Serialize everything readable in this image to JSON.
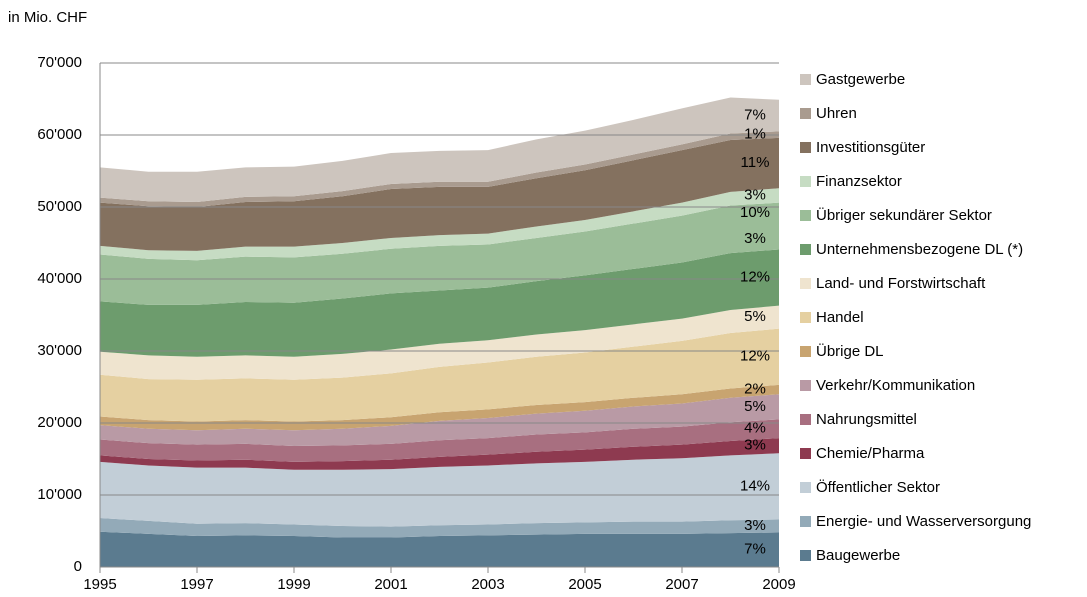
{
  "chart_data": {
    "type": "stacked_area",
    "ylabel": "in Mio. CHF",
    "x": [
      1995,
      1996,
      1997,
      1998,
      1999,
      2000,
      2001,
      2002,
      2003,
      2004,
      2005,
      2006,
      2007,
      2008,
      2009
    ],
    "xlim": [
      1995,
      2009
    ],
    "xticks": [
      1995,
      1997,
      1999,
      2001,
      2003,
      2005,
      2007,
      2009
    ],
    "ylim": [
      0,
      70000
    ],
    "yticks": [
      0,
      {
        "value": 10000,
        "label": "10'000"
      },
      {
        "value": 20000,
        "label": "20'000"
      },
      {
        "value": 30000,
        "label": "30'000"
      },
      {
        "value": 40000,
        "label": "40'000"
      },
      {
        "value": 50000,
        "label": "50'000"
      },
      {
        "value": 60000,
        "label": "60'000"
      },
      {
        "value": 70000,
        "label": "70'000"
      }
    ],
    "grid": true,
    "legend": "right",
    "series": [
      {
        "name": "Baugewerbe",
        "color": "#5b7b8f",
        "labels": [
          "7%"
        ],
        "values": [
          4900,
          4600,
          4300,
          4400,
          4300,
          4100,
          4100,
          4300,
          4400,
          4500,
          4600,
          4600,
          4600,
          4700,
          4800
        ]
      },
      {
        "name": "Energie- und Wasserversorgung",
        "color": "#93aab8",
        "labels": [
          "3%"
        ],
        "values": [
          1900,
          1800,
          1700,
          1700,
          1600,
          1600,
          1500,
          1500,
          1500,
          1600,
          1600,
          1700,
          1700,
          1800,
          1800
        ]
      },
      {
        "name": "Öffentlicher Sektor",
        "color": "#c2ced7",
        "labels": [
          "14%"
        ],
        "values": [
          7800,
          7700,
          7800,
          7700,
          7600,
          7800,
          8000,
          8100,
          8200,
          8300,
          8400,
          8600,
          8800,
          9000,
          9200
        ]
      },
      {
        "name": "Chemie/Pharma",
        "color": "#8e3a50",
        "labels": [
          "3%"
        ],
        "values": [
          900,
          900,
          1000,
          1100,
          1100,
          1200,
          1300,
          1400,
          1500,
          1600,
          1700,
          1800,
          1900,
          2000,
          2100
        ]
      },
      {
        "name": "Nahrungsmittel",
        "color": "#a86f80",
        "labels": [
          "4%"
        ],
        "values": [
          2200,
          2200,
          2200,
          2200,
          2200,
          2200,
          2200,
          2300,
          2300,
          2400,
          2400,
          2500,
          2500,
          2600,
          2600
        ]
      },
      {
        "name": "Verkehr/Kommunikation",
        "color": "#b99aa5",
        "labels": [
          "5%"
        ],
        "values": [
          2000,
          2000,
          2000,
          2100,
          2200,
          2300,
          2500,
          2700,
          2800,
          2900,
          3000,
          3100,
          3200,
          3400,
          3500
        ]
      },
      {
        "name": "Übrige DL",
        "color": "#c8a470",
        "labels": [
          "2%"
        ],
        "values": [
          1200,
          1200,
          1200,
          1200,
          1200,
          1200,
          1200,
          1200,
          1200,
          1200,
          1200,
          1200,
          1300,
          1300,
          1300
        ]
      },
      {
        "name": "Handel",
        "color": "#e5d0a1",
        "labels": [
          "12%"
        ],
        "values": [
          5800,
          5700,
          5800,
          5800,
          5800,
          5900,
          6100,
          6300,
          6500,
          6700,
          6900,
          7100,
          7400,
          7700,
          7800
        ]
      },
      {
        "name": "Land- und Forstwirtschaft",
        "color": "#efe4cf",
        "labels": [
          "5%"
        ],
        "values": [
          3200,
          3300,
          3200,
          3200,
          3200,
          3300,
          3300,
          3200,
          3100,
          3100,
          3100,
          3100,
          3100,
          3200,
          3200
        ]
      },
      {
        "name": "Unternehmensbezogene DL (*)",
        "color": "#6d9c6d",
        "labels": [
          "12%"
        ],
        "values": [
          7000,
          7000,
          7200,
          7400,
          7500,
          7700,
          7800,
          7400,
          7300,
          7400,
          7600,
          7700,
          7800,
          7900,
          7800
        ]
      },
      {
        "name": "Übriger sekundärer Sektor",
        "color": "#9bbd98",
        "labels": [
          "10%",
          "3%"
        ],
        "values": [
          6500,
          6400,
          6200,
          6300,
          6300,
          6200,
          6200,
          6200,
          6000,
          6000,
          6100,
          6300,
          6500,
          6600,
          6500
        ]
      },
      {
        "name": "Finanzsektor",
        "color": "#c6dcc3",
        "labels": [
          "3%"
        ],
        "values": [
          1200,
          1200,
          1300,
          1400,
          1500,
          1500,
          1500,
          1500,
          1500,
          1600,
          1600,
          1700,
          1800,
          1900,
          2000
        ]
      },
      {
        "name": "Investitionsgüter",
        "color": "#84715f",
        "labels": [
          "11%"
        ],
        "values": [
          6000,
          6100,
          6100,
          6200,
          6300,
          6500,
          6800,
          6700,
          6500,
          6700,
          6900,
          7100,
          7300,
          7200,
          7000
        ]
      },
      {
        "name": "Uhren",
        "color": "#a99b8f",
        "labels": [
          "1%"
        ],
        "values": [
          700,
          700,
          700,
          700,
          700,
          700,
          700,
          700,
          700,
          800,
          800,
          800,
          800,
          900,
          900
        ]
      },
      {
        "name": "Gastgewerbe",
        "color": "#cdc5be",
        "labels": [
          "7%"
        ],
        "values": [
          4200,
          4100,
          4200,
          4100,
          4100,
          4200,
          4300,
          4300,
          4400,
          4600,
          4700,
          4800,
          5000,
          5000,
          4400
        ]
      }
    ]
  }
}
